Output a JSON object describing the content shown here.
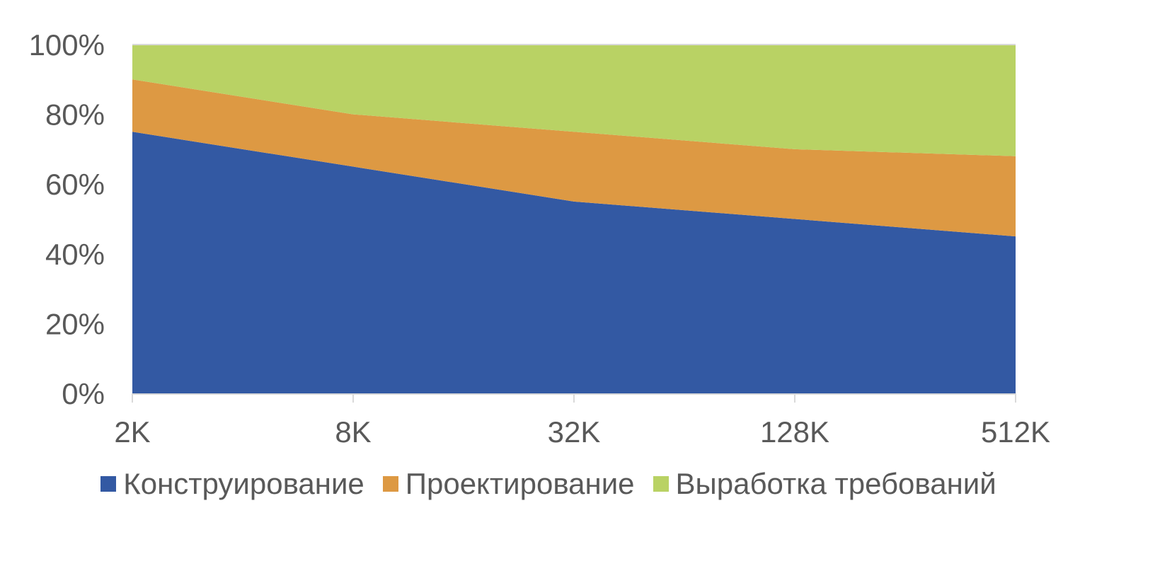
{
  "chart_data": {
    "type": "area",
    "stacked": "percent",
    "title": "",
    "xlabel": "",
    "ylabel": "",
    "categories": [
      "2K",
      "8K",
      "32K",
      "128K",
      "512K"
    ],
    "yticks": [
      "0%",
      "20%",
      "40%",
      "60%",
      "80%",
      "100%"
    ],
    "ylim": [
      0,
      100
    ],
    "grid": false,
    "legend_position": "bottom",
    "series": [
      {
        "name": "Конструирование",
        "color": "#3359A3",
        "values": [
          75,
          65,
          55,
          50,
          45
        ]
      },
      {
        "name": "Проектирование",
        "color": "#DD9943",
        "values": [
          15,
          15,
          20,
          20,
          23
        ]
      },
      {
        "name": "Выработка требований",
        "color": "#B9D264",
        "values": [
          10,
          20,
          25,
          30,
          32
        ]
      }
    ]
  },
  "legend": {
    "items": [
      {
        "label": "Конструирование",
        "color": "#3359A3"
      },
      {
        "label": "Проектирование",
        "color": "#DD9943"
      },
      {
        "label": "Выработка требований",
        "color": "#B9D264"
      }
    ]
  }
}
